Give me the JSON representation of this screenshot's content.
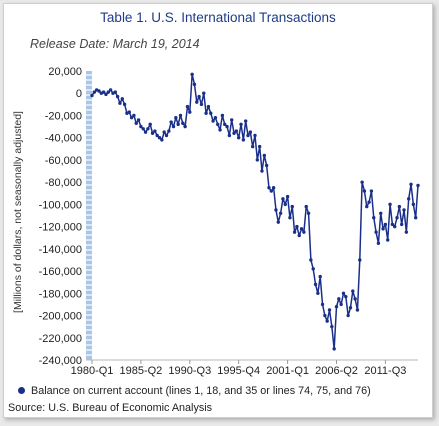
{
  "header": {
    "title": "Table 1. U.S. International Transactions",
    "release_date": "Release Date: March 19, 2014"
  },
  "source": "Source: U.S. Bureau of Economic Analysis",
  "colors": {
    "series": "#1a2f8a",
    "title": "#1f3c88",
    "axis_band": "#a9c6e8"
  },
  "chart_data": {
    "type": "line",
    "title": "Table 1. U.S. International Transactions",
    "xlabel": "",
    "ylabel": "[Millions of dollars, not seasonally adjusted]",
    "ylim": [
      -240000,
      20000
    ],
    "y_ticks": [
      20000,
      0,
      -20000,
      -40000,
      -60000,
      -80000,
      -100000,
      -120000,
      -140000,
      -160000,
      -180000,
      -200000,
      -220000,
      -240000
    ],
    "y_tick_labels": [
      "20,000",
      "0",
      "-20,000",
      "-40,000",
      "-60,000",
      "-80,000",
      "-100,000",
      "-120,000",
      "-140,000",
      "-160,000",
      "-180,000",
      "-200,000",
      "-220,000",
      "-240,000"
    ],
    "x_tick_labels": [
      "1980-Q1",
      "1985-Q2",
      "1990-Q3",
      "1995-Q4",
      "2001-Q1",
      "2006-Q2",
      "2011-Q3"
    ],
    "x_tick_index": [
      0,
      21,
      42,
      63,
      84,
      105,
      126
    ],
    "grid": false,
    "legend_position": "bottom",
    "series": [
      {
        "name": "Balance on current account (lines 1, 18, and 35 or lines 74, 75, and 76)",
        "values": [
          -2000,
          1000,
          3000,
          2000,
          0,
          1000,
          -1000,
          1000,
          3000,
          0,
          1000,
          -3000,
          -9000,
          -5000,
          -10000,
          -18000,
          -17000,
          -22000,
          -20000,
          -27000,
          -24000,
          -30000,
          -32000,
          -35000,
          -32000,
          -28000,
          -36000,
          -34000,
          -38000,
          -40000,
          -42000,
          -35000,
          -38000,
          -34000,
          -26000,
          -30000,
          -22000,
          -28000,
          -20000,
          -27000,
          -30000,
          -12000,
          -17000,
          17000,
          8000,
          -8000,
          -3000,
          -10000,
          0,
          -18000,
          -12000,
          -18000,
          -25000,
          -22000,
          -28000,
          -33000,
          -20000,
          -28000,
          -30000,
          -38000,
          -24000,
          -36000,
          -34000,
          -40000,
          -28000,
          -42000,
          -25000,
          -38000,
          -35000,
          -48000,
          -38000,
          -60000,
          -48000,
          -70000,
          -56000,
          -65000,
          -85000,
          -88000,
          -85000,
          -105000,
          -116000,
          -108000,
          -95000,
          -100000,
          -93000,
          -112000,
          -102000,
          -125000,
          -120000,
          -128000,
          -122000,
          -125000,
          -102000,
          -108000,
          -150000,
          -158000,
          -172000,
          -180000,
          -165000,
          -190000,
          -200000,
          -205000,
          -195000,
          -210000,
          -230000,
          -192000,
          -185000,
          -190000,
          -180000,
          -183000,
          -200000,
          -193000,
          -178000,
          -185000,
          -195000,
          -150000,
          -80000,
          -88000,
          -102000,
          -98000,
          -88000,
          -112000,
          -125000,
          -135000,
          -108000,
          -122000,
          -118000,
          -132000,
          -100000,
          -118000,
          -120000,
          -112000,
          -102000,
          -118000,
          -105000,
          -125000,
          -95000,
          -82000,
          -100000,
          -112000,
          -83000
        ]
      }
    ]
  }
}
